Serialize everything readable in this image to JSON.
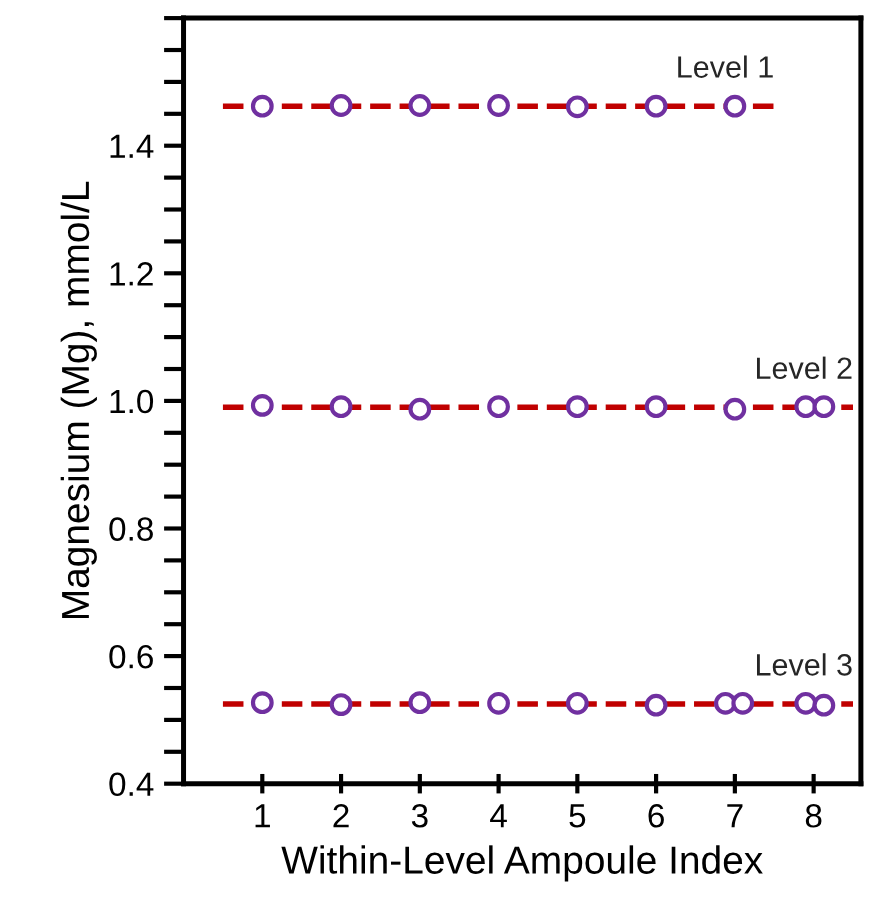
{
  "chart_data": {
    "type": "scatter",
    "xlabel": "Within-Level Ampoule Index",
    "ylabel": "Magnesium (Mg), mmol/L",
    "xlim": [
      0,
      8.6
    ],
    "xticks": [
      1,
      2,
      3,
      4,
      5,
      6,
      7,
      8
    ],
    "ylim": [
      0.4,
      1.6
    ],
    "yticks": [
      0.4,
      {
        "value": 0.45,
        "label": null
      },
      {
        "value": 0.5,
        "label": null
      },
      {
        "value": 0.55,
        "label": null
      },
      0.6,
      {
        "value": 0.65,
        "label": null
      },
      {
        "value": 0.7,
        "label": null
      },
      {
        "value": 0.75,
        "label": null
      },
      0.8,
      {
        "value": 0.85,
        "label": null
      },
      {
        "value": 0.9,
        "label": null
      },
      {
        "value": 0.95,
        "label": null
      },
      {
        "value": 1.0,
        "label": "1.0"
      },
      {
        "value": 1.05,
        "label": null
      },
      {
        "value": 1.1,
        "label": null
      },
      {
        "value": 1.15,
        "label": null
      },
      1.2,
      {
        "value": 1.25,
        "label": null
      },
      {
        "value": 1.3,
        "label": null
      },
      {
        "value": 1.35,
        "label": null
      },
      1.4,
      {
        "value": 1.45,
        "label": null
      },
      {
        "value": 1.5,
        "label": null
      },
      {
        "value": 1.55,
        "label": null
      },
      {
        "value": 1.6,
        "label": null
      }
    ],
    "grid": false,
    "series": [
      {
        "type": "line",
        "name": "Level 1",
        "color": "#c00000",
        "line_style": "dashed",
        "marker": "none",
        "x": [
          0.5,
          7.5
        ],
        "values": [
          1.462,
          1.462
        ]
      },
      {
        "type": "line",
        "name": "Level 2",
        "color": "#c00000",
        "line_style": "dashed",
        "marker": "none",
        "x": [
          0.5,
          8.5
        ],
        "values": [
          0.99,
          0.99
        ]
      },
      {
        "type": "line",
        "name": "Level 3",
        "color": "#c00000",
        "line_style": "dashed",
        "marker": "none",
        "x": [
          0.5,
          8.5
        ],
        "values": [
          0.525,
          0.525
        ]
      },
      {
        "color": "#7030a0",
        "marker": "circle",
        "x": [
          1,
          2,
          3,
          4,
          5,
          6,
          7
        ],
        "values": [
          1.462,
          1.463,
          1.463,
          1.463,
          1.461,
          1.462,
          1.462
        ]
      },
      {
        "color": "#7030a0",
        "marker": "circle",
        "x": [
          1,
          2,
          3,
          4,
          5,
          6,
          7,
          7.9,
          8.13
        ],
        "values": [
          0.993,
          0.991,
          0.987,
          0.991,
          0.991,
          0.991,
          0.987,
          0.991,
          0.991
        ]
      },
      {
        "color": "#7030a0",
        "marker": "circle",
        "x": [
          1,
          2,
          3,
          4,
          5,
          6,
          6.88,
          7.1,
          7.9,
          8.13
        ],
        "values": [
          0.527,
          0.524,
          0.527,
          0.526,
          0.526,
          0.523,
          0.526,
          0.526,
          0.526,
          0.523
        ]
      }
    ]
  }
}
